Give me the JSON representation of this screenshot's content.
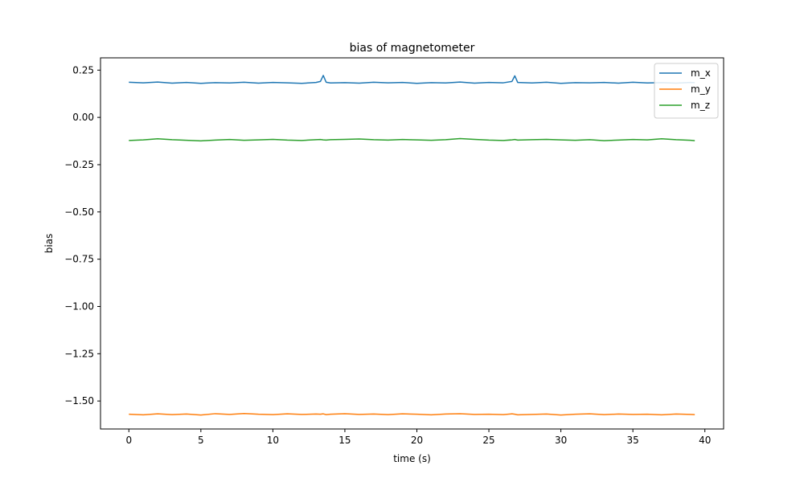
{
  "chart_data": {
    "type": "line",
    "title": "bias of magnetometer",
    "xlabel": "time (s)",
    "ylabel": "bias",
    "xlim": [
      -1.97,
      41.3
    ],
    "ylim": [
      -1.648,
      0.315
    ],
    "xticks": [
      0,
      5,
      10,
      15,
      20,
      25,
      30,
      35,
      40
    ],
    "xtick_labels": [
      "0",
      "5",
      "10",
      "15",
      "20",
      "25",
      "30",
      "35",
      "40"
    ],
    "yticks": [
      0.25,
      0.0,
      -0.25,
      -0.5,
      -0.75,
      -1.0,
      -1.25,
      -1.5
    ],
    "ytick_labels": [
      "0.25",
      "0.00",
      "−0.25",
      "−0.50",
      "−0.75",
      "−1.00",
      "−1.25",
      "−1.50"
    ],
    "grid": false,
    "legend_position": "top-right",
    "x": [
      0,
      1,
      2,
      3,
      4,
      5,
      6,
      7,
      8,
      9,
      10,
      11,
      12,
      13,
      13.3,
      13.5,
      13.7,
      14,
      15,
      16,
      17,
      18,
      19,
      20,
      21,
      22,
      23,
      24,
      25,
      26,
      26.6,
      26.8,
      27.0,
      28,
      29,
      30,
      31,
      32,
      33,
      34,
      35,
      36,
      37,
      38,
      39,
      39.3
    ],
    "series": [
      {
        "name": "m_x",
        "color": "#1f77b4",
        "values": [
          0.186,
          0.183,
          0.187,
          0.181,
          0.185,
          0.18,
          0.184,
          0.182,
          0.186,
          0.181,
          0.185,
          0.183,
          0.18,
          0.185,
          0.19,
          0.222,
          0.186,
          0.182,
          0.184,
          0.181,
          0.186,
          0.183,
          0.185,
          0.18,
          0.184,
          0.182,
          0.187,
          0.181,
          0.185,
          0.183,
          0.19,
          0.22,
          0.185,
          0.182,
          0.186,
          0.18,
          0.184,
          0.183,
          0.185,
          0.181,
          0.186,
          0.182,
          0.184,
          0.181,
          0.185,
          0.184
        ]
      },
      {
        "name": "m_y",
        "color": "#ff7f0e",
        "values": [
          -1.57,
          -1.573,
          -1.568,
          -1.572,
          -1.569,
          -1.574,
          -1.567,
          -1.571,
          -1.566,
          -1.57,
          -1.572,
          -1.568,
          -1.571,
          -1.569,
          -1.57,
          -1.568,
          -1.572,
          -1.57,
          -1.567,
          -1.571,
          -1.569,
          -1.572,
          -1.568,
          -1.57,
          -1.573,
          -1.569,
          -1.567,
          -1.571,
          -1.57,
          -1.572,
          -1.568,
          -1.57,
          -1.573,
          -1.571,
          -1.569,
          -1.574,
          -1.57,
          -1.568,
          -1.572,
          -1.569,
          -1.571,
          -1.57,
          -1.573,
          -1.569,
          -1.571,
          -1.572
        ]
      },
      {
        "name": "m_z",
        "color": "#2ca02c",
        "values": [
          -0.122,
          -0.119,
          -0.113,
          -0.118,
          -0.121,
          -0.124,
          -0.12,
          -0.117,
          -0.121,
          -0.119,
          -0.116,
          -0.12,
          -0.122,
          -0.118,
          -0.117,
          -0.119,
          -0.12,
          -0.118,
          -0.116,
          -0.114,
          -0.118,
          -0.12,
          -0.117,
          -0.119,
          -0.121,
          -0.118,
          -0.112,
          -0.116,
          -0.12,
          -0.122,
          -0.119,
          -0.117,
          -0.12,
          -0.118,
          -0.116,
          -0.119,
          -0.121,
          -0.118,
          -0.123,
          -0.12,
          -0.117,
          -0.119,
          -0.113,
          -0.118,
          -0.121,
          -0.123
        ]
      }
    ]
  }
}
